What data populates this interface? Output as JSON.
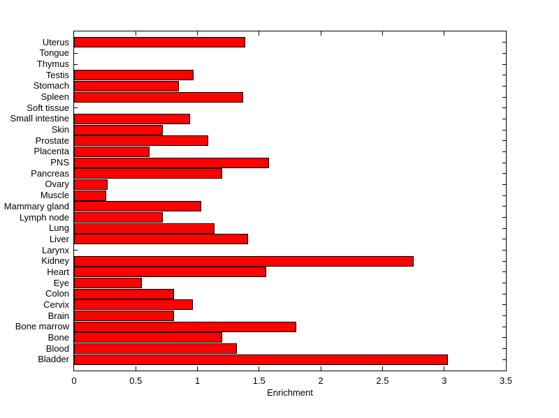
{
  "figure": {
    "background_color": "#ffffff",
    "axis_color": "#000000"
  },
  "chart_data": {
    "type": "bar",
    "orientation": "horizontal",
    "title": "",
    "xlabel": "Enrichment",
    "ylabel": "",
    "xlim": [
      0,
      3.5
    ],
    "x_ticks": [
      0,
      0.5,
      1,
      1.5,
      2,
      2.5,
      3,
      3.5
    ],
    "x_tick_labels": [
      "0",
      "0.5",
      "1",
      "1.5",
      "2",
      "2.5",
      "3",
      "3.5"
    ],
    "grid": false,
    "legend": null,
    "bar_color": "#ff0000",
    "bar_edge_color": "#000000",
    "categories": [
      "Uterus",
      "Tongue",
      "Thymus",
      "Testis",
      "Stomach",
      "Spleen",
      "Soft tissue",
      "Small intestine",
      "Skin",
      "Prostate",
      "Placenta",
      "PNS",
      "Pancreas",
      "Ovary",
      "Muscle",
      "Mammary gland",
      "Lymph node",
      "Lung",
      "Liver",
      "Larynx",
      "Kidney",
      "Heart",
      "Eye",
      "Colon",
      "Cervix",
      "Brain",
      "Bone marrow",
      "Bone",
      "Blood",
      "Bladder"
    ],
    "values": [
      1.39,
      0,
      0,
      0.97,
      0.85,
      1.37,
      0,
      0.94,
      0.72,
      1.09,
      0.61,
      1.58,
      1.2,
      0.27,
      0.26,
      1.03,
      0.72,
      1.14,
      1.41,
      0,
      2.75,
      1.56,
      0.55,
      0.81,
      0.96,
      0.81,
      1.8,
      1.2,
      1.32,
      3.03
    ],
    "category_order_note": "listed top-to-bottom as displayed"
  }
}
